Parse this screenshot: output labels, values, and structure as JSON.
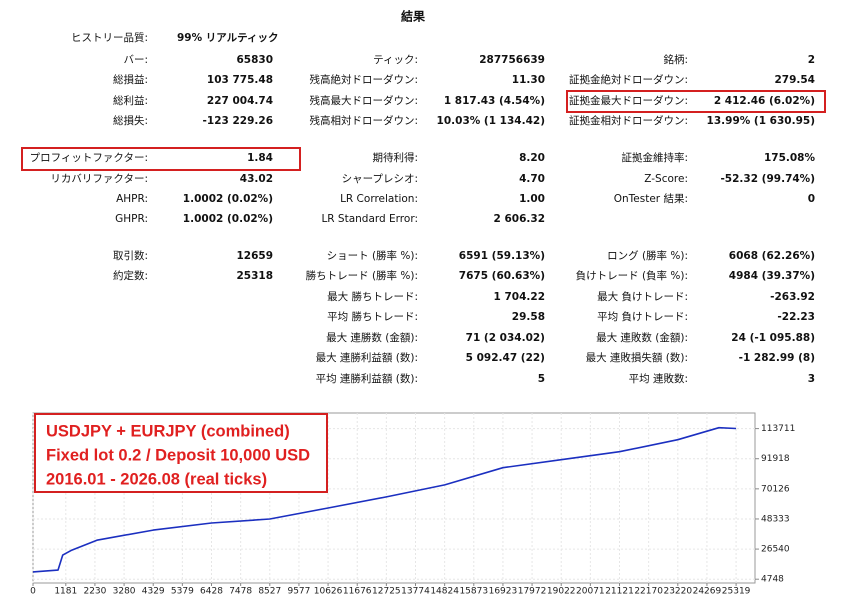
{
  "report": {
    "title": "結果",
    "rows": [
      [
        "ヒストリー品質:",
        "99% リアルティック",
        null,
        null,
        null,
        null
      ],
      [
        "バー:",
        "65830",
        "ティック:",
        "287756639",
        "銘柄:",
        "2"
      ],
      [
        "総損益:",
        "103 775.48",
        "残高絶対ドローダウン:",
        "11.30",
        "証拠金絶対ドローダウン:",
        "279.54"
      ],
      [
        "総利益:",
        "227 004.74",
        "残高最大ドローダウン:",
        "1 817.43 (4.54%)",
        "証拠金最大ドローダウン:",
        "2 412.46 (6.02%)"
      ],
      [
        "総損失:",
        "-123 229.26",
        "残高相対ドローダウン:",
        "10.03% (1 134.42)",
        "証拠金相対ドローダウン:",
        "13.99% (1 630.95)"
      ],
      [
        "プロフィットファクター:",
        "1.84",
        "期待利得:",
        "8.20",
        "証拠金維持率:",
        "175.08%"
      ],
      [
        "リカバリファクター:",
        "43.02",
        "シャープレシオ:",
        "4.70",
        "Z-Score:",
        "-52.32 (99.74%)"
      ],
      [
        "AHPR:",
        "1.0002 (0.02%)",
        "LR Correlation:",
        "1.00",
        "OnTester 結果:",
        "0"
      ],
      [
        "GHPR:",
        "1.0002 (0.02%)",
        "LR Standard Error:",
        "2 606.32",
        null,
        null
      ],
      [
        "取引数:",
        "12659",
        "ショート (勝率 %):",
        "6591 (59.13%)",
        "ロング (勝率 %):",
        "6068 (62.26%)"
      ],
      [
        "約定数:",
        "25318",
        "勝ちトレード (勝率 %):",
        "7675 (60.63%)",
        "負けトレード (負率 %):",
        "4984 (39.37%)"
      ],
      [
        null,
        null,
        "最大 勝ちトレード:",
        "1 704.22",
        "最大 負けトレード:",
        "-263.92"
      ],
      [
        null,
        null,
        "平均 勝ちトレード:",
        "29.58",
        "平均 負けトレード:",
        "-22.23"
      ],
      [
        null,
        null,
        "最大 連勝数 (金額):",
        "71 (2 034.02)",
        "最大 連敗数 (金額):",
        "24 (-1 095.88)"
      ],
      [
        null,
        null,
        "最大 連勝利益額 (数):",
        "5 092.47 (22)",
        "最大 連敗損失額 (数):",
        "-1 282.99 (8)"
      ],
      [
        null,
        null,
        "平均 連勝利益額 (数):",
        "5",
        "平均 連敗数:",
        "3"
      ]
    ]
  },
  "chart_data": {
    "type": "line",
    "annotations": [
      "USDJPY + EURJPY (combined)",
      "Fixed lot 0.2 / Deposit 10,000 USD",
      "2016.01 - 2026.08 (real ticks)"
    ],
    "x": [
      0,
      900,
      1070,
      1400,
      2300,
      4329,
      6428,
      8527,
      10626,
      12725,
      14824,
      16923,
      19022,
      21121,
      23220,
      24700,
      25319
    ],
    "values": [
      10000,
      11300,
      22200,
      25800,
      33000,
      40300,
      45400,
      48300,
      56300,
      64300,
      73000,
      85400,
      91200,
      97000,
      105700,
      114400,
      113775
    ],
    "color": "#1b2fc0",
    "xlim": [
      0,
      26000
    ],
    "ylim": [
      2000,
      125000
    ],
    "xticks": [
      0,
      1181,
      2230,
      3280,
      4329,
      5379,
      6428,
      7478,
      8527,
      9577,
      10626,
      11676,
      12725,
      13774,
      14824,
      15873,
      16923,
      17972,
      19022,
      20071,
      21121,
      22170,
      23220,
      24269,
      25319
    ],
    "yticks": [
      4748,
      26540,
      48333,
      70126,
      91918,
      113711
    ],
    "grid": true
  }
}
